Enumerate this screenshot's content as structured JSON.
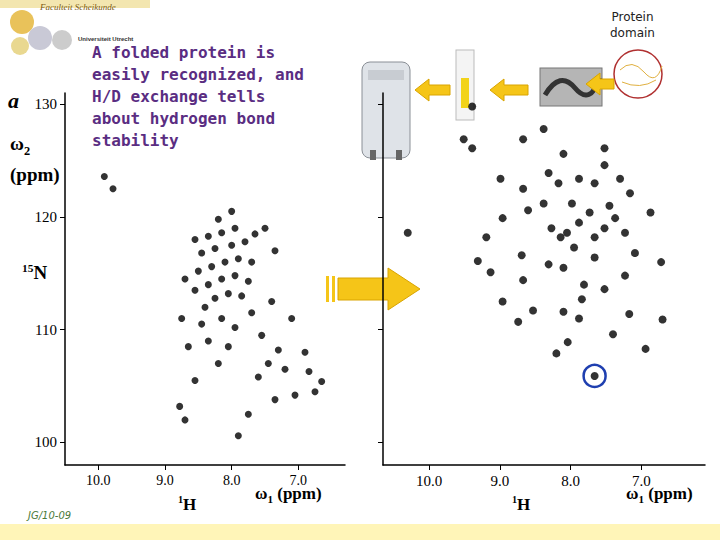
{
  "chart_data": [
    {
      "type": "scatter",
      "y_label": "ω2 (ppm)",
      "y_nucleus": "15N",
      "x_label": "ω1 (ppm)",
      "x_nucleus": "1H",
      "xlim": [
        10.5,
        6.3
      ],
      "xticks": [
        {
          "value": 10,
          "label": "10.0"
        },
        {
          "value": 9,
          "label": "9.0"
        },
        {
          "value": 8,
          "label": "8.0"
        },
        {
          "value": 7,
          "label": "7.0"
        }
      ],
      "ylim": [
        98,
        131
      ],
      "yticks": [
        100,
        110,
        120,
        130
      ],
      "grid": false,
      "marker": "circle",
      "color": "#000000",
      "x": [
        9.91,
        9.78,
        8.78,
        8.7,
        8.55,
        7.9,
        7.75,
        7.35,
        7.05,
        6.84,
        6.65,
        6.75,
        7.2,
        7.45,
        7.3,
        7.6,
        8.2,
        8.05,
        8.35,
        8.45,
        8.15,
        7.95,
        7.7,
        8.4,
        8.25,
        8.05,
        7.85,
        8.55,
        8.35,
        8.15,
        7.95,
        7.75,
        8.5,
        8.3,
        8.1,
        7.9,
        7.7,
        8.45,
        8.25,
        8.0,
        7.8,
        8.35,
        8.15,
        7.95,
        7.65,
        8.55,
        8.2,
        8.0,
        7.5,
        7.35,
        8.7,
        8.65,
        7.55,
        7.4,
        6.9,
        7.1,
        8.75
      ],
      "values": [
        123.6,
        122.5,
        103.2,
        102.0,
        105.5,
        100.6,
        102.5,
        103.8,
        104.2,
        106.3,
        105.4,
        104.5,
        106.5,
        107.0,
        108.2,
        105.8,
        107.0,
        108.5,
        109.0,
        110.5,
        111.0,
        110.2,
        111.5,
        112.0,
        112.8,
        113.2,
        113.0,
        113.5,
        114.0,
        114.5,
        114.8,
        114.3,
        115.2,
        115.6,
        116.0,
        116.3,
        116.0,
        116.8,
        117.2,
        117.5,
        117.8,
        118.3,
        118.6,
        119.0,
        118.5,
        118.0,
        119.8,
        120.5,
        119.0,
        117.0,
        114.5,
        108.5,
        109.5,
        112.5,
        108.0,
        111.0,
        111.0
      ]
    },
    {
      "type": "scatter",
      "x_label": "ω1 (ppm)",
      "x_nucleus": "1H",
      "xlim": [
        10.65,
        6.1
      ],
      "xticks": [
        {
          "value": 10,
          "label": "10.0"
        },
        {
          "value": 9,
          "label": "9.0"
        },
        {
          "value": 8,
          "label": "8.0"
        },
        {
          "value": 7,
          "label": "7.0"
        }
      ],
      "ylim": [
        98,
        131
      ],
      "yticks": [
        100,
        110,
        120,
        130
      ],
      "tick_labels": "x",
      "grid": false,
      "marker": "circle",
      "color": "#000000",
      "highlight": {
        "x": 7.66,
        "y": 105.9
      },
      "x": [
        7.66,
        8.2,
        8.04,
        8.74,
        8.53,
        7.88,
        7.4,
        6.7,
        7.17,
        6.94,
        8.96,
        9.31,
        10.3,
        9.19,
        8.69,
        8.31,
        8.1,
        7.81,
        7.52,
        7.23,
        6.72,
        7.66,
        7.95,
        8.14,
        8.27,
        8.05,
        7.88,
        7.73,
        7.52,
        7.37,
        7.23,
        7.45,
        8.38,
        8.6,
        8.96,
        8.99,
        8.67,
        8.31,
        8.17,
        7.88,
        7.52,
        7.3,
        7.16,
        7.66,
        8.1,
        7.52,
        9.39,
        9.51,
        8.67,
        8.38,
        9.39,
        8.1,
        7.84,
        8.67,
        9.13,
        7.98,
        7.66,
        7.09,
        6.87
      ],
      "values": [
        105.9,
        107.9,
        108.9,
        110.7,
        111.7,
        111.0,
        109.6,
        110.9,
        111.4,
        108.3,
        112.5,
        116.1,
        118.6,
        118.2,
        116.6,
        115.8,
        115.5,
        114.0,
        113.6,
        114.8,
        116.0,
        116.4,
        117.3,
        118.2,
        119.0,
        118.6,
        119.5,
        120.4,
        119.0,
        119.9,
        118.6,
        121.0,
        121.2,
        120.6,
        119.9,
        123.4,
        122.5,
        123.9,
        123.0,
        123.4,
        124.6,
        123.4,
        122.1,
        123.0,
        125.6,
        126.1,
        126.1,
        126.9,
        126.9,
        127.8,
        129.8,
        111.6,
        112.7,
        114.4,
        115.1,
        121.2,
        118.2,
        116.8,
        120.4
      ]
    }
  ],
  "slide": {
    "header": [
      "Faculteit Scheikunde",
      "Universiteit Utrecht"
    ],
    "caption": [
      "A folded protein is",
      "easily recognized, and",
      "H/D exchange tells",
      "about hydrogen bond",
      "stability"
    ],
    "inset_label": [
      "Protein",
      "domain"
    ],
    "panel_label": "a",
    "footer": "JG/10-09"
  }
}
